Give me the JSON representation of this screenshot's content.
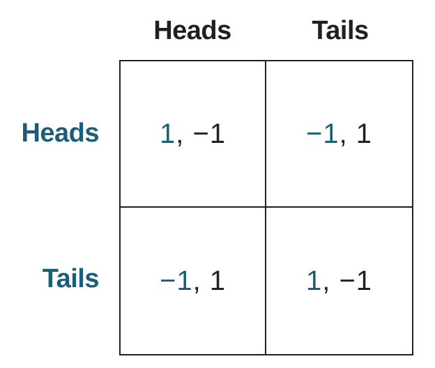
{
  "column_headers": [
    "Heads",
    "Tails"
  ],
  "row_headers": [
    "Heads",
    "Tails"
  ],
  "cells": [
    [
      {
        "first": "1",
        "second": "−1"
      },
      {
        "first": "−1",
        "second": "1"
      }
    ],
    [
      {
        "first": "−1",
        "second": "1"
      },
      {
        "first": "1",
        "second": "−1"
      }
    ]
  ],
  "separator": ", ",
  "colors": {
    "header_text": "#231f20",
    "row_header_text": "#1c5e79",
    "first_payoff": "#1c5e79",
    "second_payoff": "#231f20",
    "grid_line": "#231f20"
  }
}
